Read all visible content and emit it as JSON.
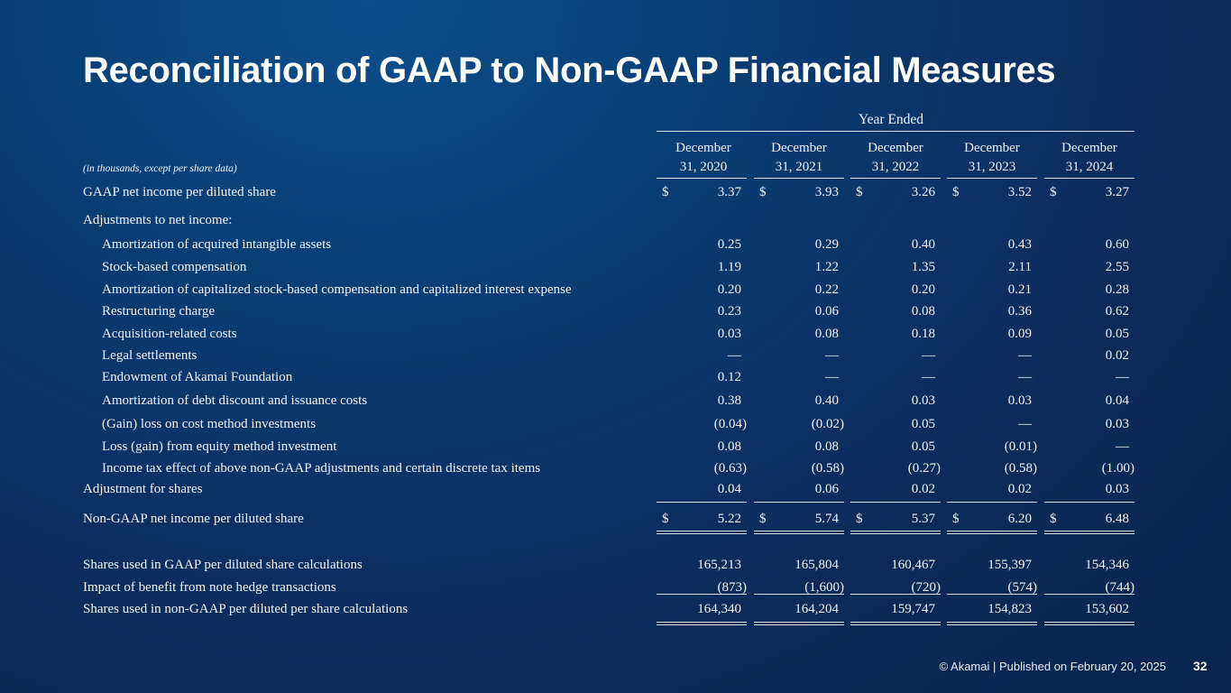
{
  "title": "Reconciliation of GAAP to Non-GAAP Financial Measures",
  "table": {
    "group_header": "Year Ended",
    "units_note": "(in thousands, except per share data)",
    "columns": [
      {
        "line1": "December",
        "line2": "31, 2020"
      },
      {
        "line1": "December",
        "line2": "31, 2021"
      },
      {
        "line1": "December",
        "line2": "31, 2022"
      },
      {
        "line1": "December",
        "line2": "31, 2023"
      },
      {
        "line1": "December",
        "line2": "31, 2024"
      }
    ],
    "currency_symbol": "$",
    "rows": [
      {
        "label": "GAAP net income per diluted share",
        "values": [
          "3.37",
          "3.93",
          "3.26",
          "3.52",
          "3.27"
        ]
      },
      {
        "label": "Adjustments to net income:",
        "values": [
          "",
          "",
          "",
          "",
          ""
        ]
      },
      {
        "label": "Amortization of acquired intangible assets",
        "values": [
          "0.25",
          "0.29",
          "0.40",
          "0.43",
          "0.60"
        ]
      },
      {
        "label": "Stock-based compensation",
        "values": [
          "1.19",
          "1.22",
          "1.35",
          "2.11",
          "2.55"
        ]
      },
      {
        "label": "Amortization of capitalized stock-based compensation and capitalized interest expense",
        "values": [
          "0.20",
          "0.22",
          "0.20",
          "0.21",
          "0.28"
        ]
      },
      {
        "label": "Restructuring charge",
        "values": [
          "0.23",
          "0.06",
          "0.08",
          "0.36",
          "0.62"
        ]
      },
      {
        "label": "Acquisition-related costs",
        "values": [
          "0.03",
          "0.08",
          "0.18",
          "0.09",
          "0.05"
        ]
      },
      {
        "label": "Legal settlements",
        "values": [
          "—",
          "—",
          "—",
          "—",
          "0.02"
        ]
      },
      {
        "label": "Endowment of Akamai Foundation",
        "values": [
          "0.12",
          "—",
          "—",
          "—",
          "—"
        ]
      },
      {
        "label": "Amortization of debt discount and issuance costs",
        "values": [
          "0.38",
          "0.40",
          "0.03",
          "0.03",
          "0.04"
        ]
      },
      {
        "label": "(Gain) loss on cost method investments",
        "values": [
          "(0.04)",
          "(0.02)",
          "0.05",
          "—",
          "0.03"
        ]
      },
      {
        "label": "Loss (gain) from equity method investment",
        "values": [
          "0.08",
          "0.08",
          "0.05",
          "(0.01)",
          "—"
        ]
      },
      {
        "label": "Income tax effect of above non-GAAP adjustments and certain discrete tax items",
        "values": [
          "(0.63)",
          "(0.58)",
          "(0.27)",
          "(0.58)",
          "(1.00)"
        ]
      },
      {
        "label": "Adjustment for shares",
        "values": [
          "0.04",
          "0.06",
          "0.02",
          "0.02",
          "0.03"
        ]
      },
      {
        "label": "Non-GAAP net income per diluted share",
        "values": [
          "5.22",
          "5.74",
          "5.37",
          "6.20",
          "6.48"
        ]
      },
      {
        "label": "Shares used in GAAP per diluted share calculations",
        "values": [
          "165,213",
          "165,804",
          "160,467",
          "155,397",
          "154,346"
        ]
      },
      {
        "label": "Impact of benefit from note hedge transactions",
        "values": [
          "(873)",
          "(1,600)",
          "(720)",
          "(574)",
          "(744)"
        ]
      },
      {
        "label": "Shares used in non-GAAP per diluted per share calculations",
        "values": [
          "164,340",
          "164,204",
          "159,747",
          "154,823",
          "153,602"
        ]
      }
    ]
  },
  "footer": {
    "text": "© Akamai  |  Published on February 20, 2025",
    "page_number": "32"
  }
}
